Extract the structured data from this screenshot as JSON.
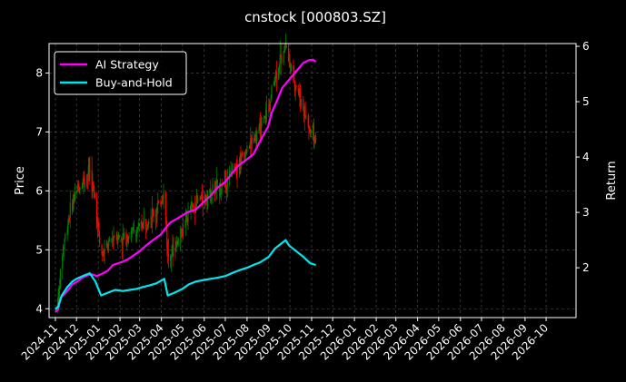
{
  "chart_data": {
    "type": "candlestick+line",
    "title": "cnstock [000803.SZ]",
    "xlabel": "",
    "ylabel_left": "Price",
    "ylabel_right": "Return",
    "grid": true,
    "legend_position": "top-left",
    "x_range": [
      "2024-11-01",
      "2026-11-01"
    ],
    "x_ticks": [
      "2024-11",
      "2024-12",
      "2025-01",
      "2025-02",
      "2025-03",
      "2025-04",
      "2025-05",
      "2025-06",
      "2025-07",
      "2025-08",
      "2025-09",
      "2025-10",
      "2025-11",
      "2025-12",
      "2026-01",
      "2026-02",
      "2026-03",
      "2026-04",
      "2026-05",
      "2026-06",
      "2026-07",
      "2026-08",
      "2026-09",
      "2026-10"
    ],
    "ylim_left": [
      3.85,
      8.5
    ],
    "yticks_left": [
      4,
      5,
      6,
      7,
      8
    ],
    "ylim_right": [
      1.1,
      6.05
    ],
    "yticks_right": [
      2,
      3,
      4,
      5,
      6
    ],
    "colors": {
      "up": "#008000",
      "down": "#ff0000",
      "ai_strategy": "#ff00ff",
      "buy_and_hold": "#00e5ee",
      "grid": "#555555",
      "legend_edge": "#ffffff"
    },
    "series": [
      {
        "name": "AI Strategy",
        "axis": "right",
        "x": [
          "2024-11-01",
          "2024-11-05",
          "2024-11-08",
          "2024-11-12",
          "2024-11-18",
          "2024-11-25",
          "2024-12-02",
          "2024-12-09",
          "2024-12-16",
          "2024-12-23",
          "2024-12-30",
          "2025-01-08",
          "2025-01-15",
          "2025-01-22",
          "2025-02-03",
          "2025-02-12",
          "2025-02-20",
          "2025-03-01",
          "2025-03-10",
          "2025-03-20",
          "2025-03-31",
          "2025-04-07",
          "2025-04-14",
          "2025-04-25",
          "2025-05-08",
          "2025-05-20",
          "2025-06-01",
          "2025-06-10",
          "2025-06-20",
          "2025-07-01",
          "2025-07-10",
          "2025-07-20",
          "2025-07-31",
          "2025-08-10",
          "2025-08-20",
          "2025-08-31",
          "2025-09-05",
          "2025-09-12",
          "2025-09-20",
          "2025-09-30",
          "2025-10-10",
          "2025-10-20",
          "2025-10-28",
          "2025-11-03",
          "2025-11-07"
        ],
        "values": [
          1.2,
          1.25,
          1.45,
          1.5,
          1.58,
          1.7,
          1.75,
          1.82,
          1.86,
          1.88,
          1.85,
          1.9,
          1.95,
          2.05,
          2.1,
          2.15,
          2.22,
          2.3,
          2.4,
          2.5,
          2.6,
          2.72,
          2.82,
          2.9,
          3.0,
          3.05,
          3.2,
          3.3,
          3.45,
          3.55,
          3.7,
          3.85,
          3.95,
          4.05,
          4.3,
          4.55,
          4.8,
          5.0,
          5.25,
          5.4,
          5.55,
          5.7,
          5.75,
          5.76,
          5.72
        ]
      },
      {
        "name": "Buy-and-Hold",
        "axis": "right",
        "x": [
          "2024-11-01",
          "2024-11-05",
          "2024-11-10",
          "2024-11-18",
          "2024-11-25",
          "2024-12-01",
          "2024-12-10",
          "2024-12-20",
          "2024-12-28",
          "2025-01-05",
          "2025-01-15",
          "2025-01-25",
          "2025-02-05",
          "2025-02-15",
          "2025-02-25",
          "2025-03-05",
          "2025-03-15",
          "2025-03-25",
          "2025-04-05",
          "2025-04-10",
          "2025-04-20",
          "2025-05-01",
          "2025-05-10",
          "2025-05-20",
          "2025-06-01",
          "2025-06-10",
          "2025-06-20",
          "2025-07-01",
          "2025-07-10",
          "2025-07-20",
          "2025-08-01",
          "2025-08-10",
          "2025-08-20",
          "2025-09-01",
          "2025-09-10",
          "2025-09-20",
          "2025-09-25",
          "2025-09-30",
          "2025-10-10",
          "2025-10-20",
          "2025-10-30",
          "2025-11-07"
        ],
        "values": [
          1.25,
          1.3,
          1.5,
          1.65,
          1.75,
          1.8,
          1.85,
          1.9,
          1.75,
          1.5,
          1.55,
          1.6,
          1.58,
          1.6,
          1.62,
          1.65,
          1.68,
          1.72,
          1.8,
          1.5,
          1.55,
          1.62,
          1.7,
          1.75,
          1.78,
          1.8,
          1.82,
          1.85,
          1.9,
          1.95,
          2.0,
          2.05,
          2.1,
          2.2,
          2.35,
          2.45,
          2.5,
          2.4,
          2.3,
          2.2,
          2.08,
          2.05
        ]
      }
    ]
  }
}
